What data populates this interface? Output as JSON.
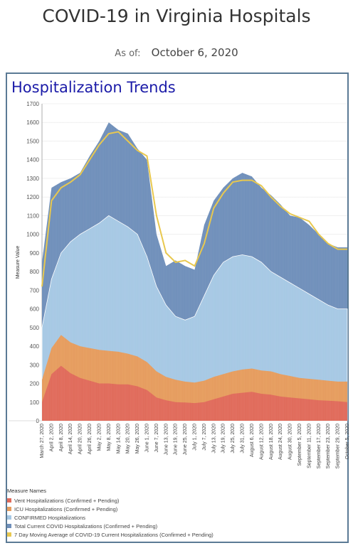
{
  "header": {
    "title": "COVID-19 in Virginia Hospitals",
    "as_of_label": "As of:",
    "as_of_date": "October 6, 2020"
  },
  "panel": {
    "title": "Hospitalization Trends"
  },
  "colors": {
    "vent": "#e06a5a",
    "icu": "#e69c5d",
    "confirmed": "#a6c8e4",
    "total": "#6f8fba",
    "moving_avg": "#e8c84f"
  },
  "legend": {
    "title": "Measure Names",
    "items": [
      {
        "label": "Vent Hospitalizations (Confirmed + Pending)",
        "color": "#e06a5a"
      },
      {
        "label": "ICU Hospitalizations (Confirmed + Pending)",
        "color": "#e69c5d"
      },
      {
        "label": "CONFIRMED Hospitalizations",
        "color": "#a6c8e4"
      },
      {
        "label": "Total Current COVID Hospitalizations (Confirmed + Pending)",
        "color": "#6f8fba"
      },
      {
        "label": "7 Day Moving Average of COVID-19 Current Hospitalizations (Confirmed + Pending)",
        "color": "#e8c84f"
      }
    ]
  },
  "chart_data": {
    "type": "area",
    "ylabel": "Measure Value",
    "ylim": [
      0,
      1700
    ],
    "yticks": [
      0,
      100,
      200,
      300,
      400,
      500,
      600,
      700,
      800,
      900,
      1000,
      1100,
      1200,
      1300,
      1400,
      1500,
      1600,
      1700
    ],
    "x": [
      "March 27, 2020",
      "April 2, 2020",
      "April 8, 2020",
      "April 14, 2020",
      "April 20, 2020",
      "April 26, 2020",
      "May 2, 2020",
      "May 8, 2020",
      "May 14, 2020",
      "May 20, 2020",
      "May 26, 2020",
      "June 1, 2020",
      "June 7, 2020",
      "June 13, 2020",
      "June 19, 2020",
      "June 25, 2020",
      "July 1, 2020",
      "July 7, 2020",
      "July 13, 2020",
      "July 19, 2020",
      "July 25, 2020",
      "July 31, 2020",
      "August 6, 2020",
      "August 12, 2020",
      "August 18, 2020",
      "August 24, 2020",
      "August 30, 2020",
      "September 5, 2020",
      "September 11, 2020",
      "September 17, 2020",
      "September 23, 2020",
      "September 29, 2020",
      "October 5, 2020"
    ],
    "series": [
      {
        "name": "Vent Hospitalizations (Confirmed + Pending)",
        "values": [
          100,
          250,
          295,
          255,
          230,
          215,
          200,
          200,
          195,
          195,
          185,
          165,
          125,
          110,
          100,
          98,
          95,
          100,
          115,
          130,
          145,
          150,
          155,
          145,
          140,
          130,
          125,
          120,
          115,
          110,
          108,
          105,
          100
        ]
      },
      {
        "name": "ICU Hospitalizations (Confirmed + Pending)",
        "values": [
          220,
          390,
          460,
          420,
          400,
          390,
          380,
          375,
          370,
          360,
          345,
          315,
          265,
          235,
          220,
          210,
          205,
          215,
          235,
          250,
          265,
          275,
          280,
          270,
          265,
          250,
          240,
          230,
          225,
          220,
          215,
          210,
          210
        ]
      },
      {
        "name": "CONFIRMED Hospitalizations",
        "values": [
          500,
          760,
          900,
          960,
          1000,
          1030,
          1060,
          1100,
          1070,
          1040,
          1000,
          880,
          720,
          620,
          560,
          540,
          560,
          670,
          780,
          850,
          880,
          890,
          880,
          850,
          800,
          770,
          740,
          710,
          680,
          650,
          620,
          600,
          600
        ]
      },
      {
        "name": "Total Current COVID Hospitalizations (Confirmed + Pending)",
        "values": [
          850,
          1250,
          1280,
          1300,
          1330,
          1420,
          1500,
          1600,
          1560,
          1540,
          1460,
          1400,
          1000,
          830,
          860,
          830,
          810,
          1050,
          1180,
          1250,
          1300,
          1330,
          1310,
          1250,
          1210,
          1160,
          1100,
          1090,
          1050,
          1000,
          950,
          930,
          930
        ]
      },
      {
        "name": "7 Day Moving Average of COVID-19 Current Hospitalizations (Confirmed + Pending)",
        "values": [
          720,
          1180,
          1250,
          1280,
          1320,
          1400,
          1480,
          1540,
          1550,
          1500,
          1450,
          1420,
          1100,
          900,
          850,
          860,
          830,
          950,
          1140,
          1220,
          1280,
          1290,
          1290,
          1260,
          1200,
          1150,
          1110,
          1090,
          1070,
          1000,
          950,
          920,
          920
        ]
      }
    ]
  }
}
